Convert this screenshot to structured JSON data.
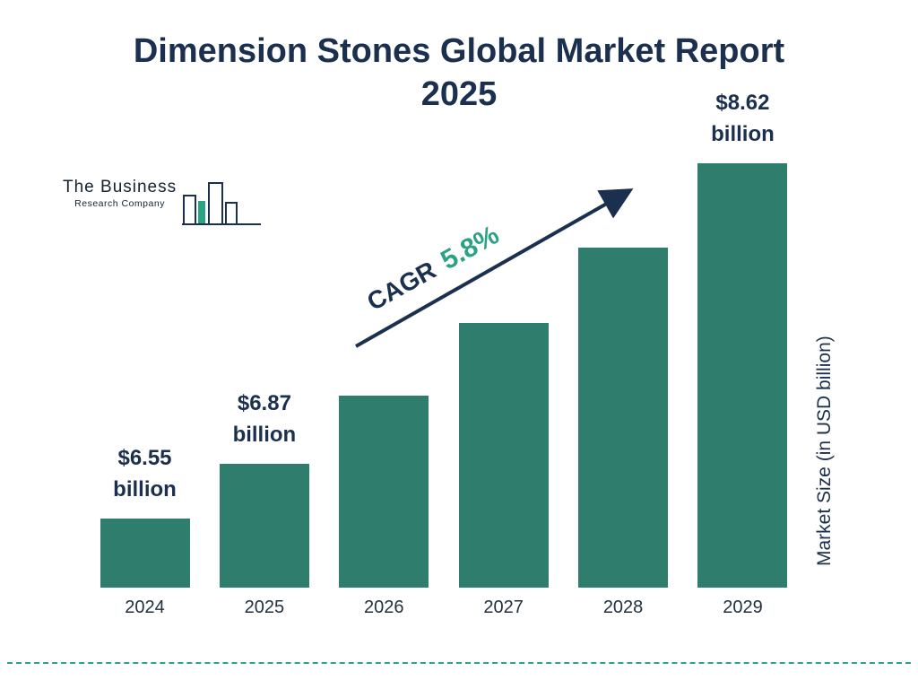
{
  "logo": {
    "line1": "The Business",
    "line2": "Research Company"
  },
  "title": "Dimension Stones Global Market Report 2025",
  "cagr": {
    "label": "CAGR",
    "value": "5.8%"
  },
  "y_axis_label": "Market Size (in USD billion)",
  "colors": {
    "bar": "#2e7d6d",
    "navy": "#1b2f4e",
    "teal": "#2aa385"
  },
  "chart_data": {
    "type": "bar",
    "title": "Dimension Stones Global Market Report 2025",
    "categories": [
      "2024",
      "2025",
      "2026",
      "2027",
      "2028",
      "2029"
    ],
    "values": [
      6.55,
      6.87,
      7.27,
      7.69,
      8.13,
      8.62
    ],
    "bar_labels": [
      {
        "value": "$6.55",
        "unit": "billion"
      },
      {
        "value": "$6.87",
        "unit": "billion"
      },
      null,
      null,
      null,
      {
        "value": "$8.62",
        "unit": "billion"
      }
    ],
    "xlabel": "",
    "ylabel": "Market Size (in USD billion)",
    "ylim": [
      6.15,
      8.62
    ],
    "grid": false,
    "legend": false,
    "cagr": "5.8%"
  }
}
